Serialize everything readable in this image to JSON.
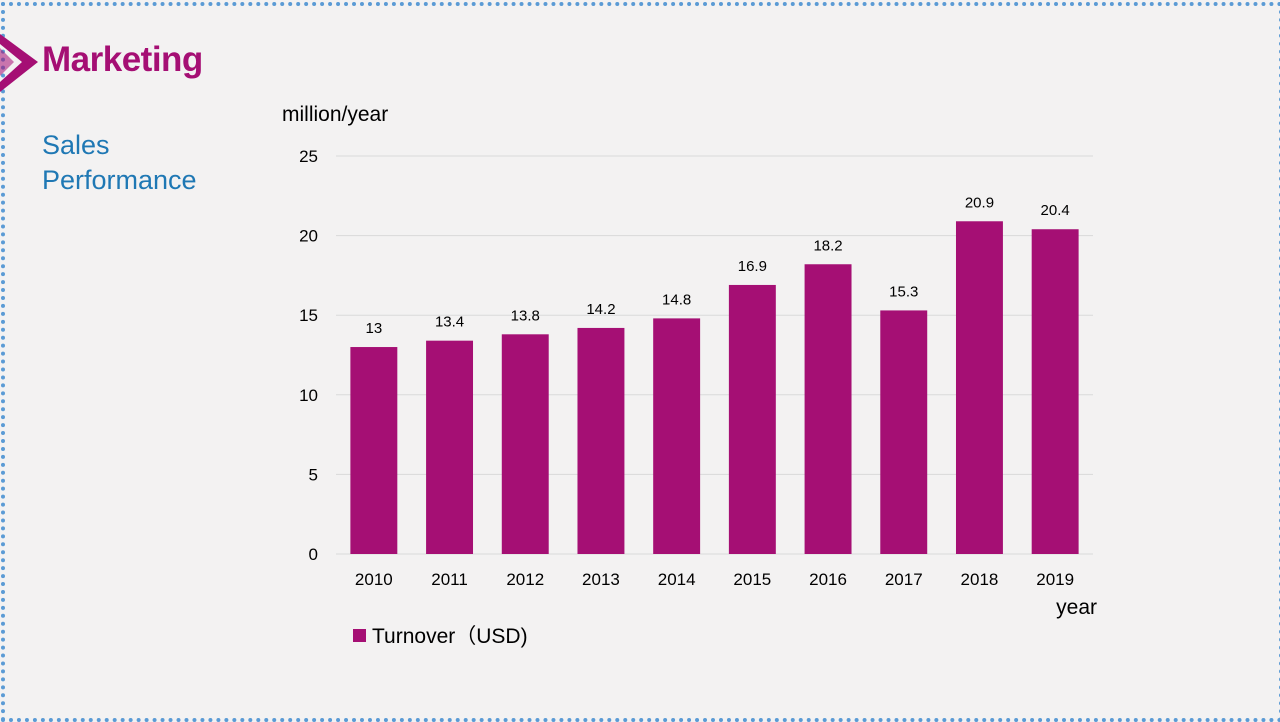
{
  "page": {
    "title": "Marketing",
    "subtitle": "Sales Performance"
  },
  "colors": {
    "accent": "#a50f74",
    "subtitle": "#1f78b4",
    "frame": "#5b9bd5",
    "background": "#f3f2f2",
    "grid": "#d9d9d9"
  },
  "icons": {
    "header": "chevron-right-icon"
  },
  "chart_data": {
    "type": "bar",
    "categories": [
      "2010",
      "2011",
      "2012",
      "2013",
      "2014",
      "2015",
      "2016",
      "2017",
      "2018",
      "2019"
    ],
    "series": [
      {
        "name": "Turnover（USD)",
        "values": [
          13,
          13.4,
          13.8,
          14.2,
          14.8,
          16.9,
          18.2,
          15.3,
          20.9,
          20.4
        ],
        "color": "#a50f74"
      }
    ],
    "data_labels": [
      "13",
      "13.4",
      "13.8",
      "14.2",
      "14.8",
      "16.9",
      "18.2",
      "15.3",
      "20.9",
      "20.4"
    ],
    "ylabel": "million/year",
    "xlabel": "year",
    "ylim": [
      0,
      25
    ],
    "yticks": [
      0,
      5,
      10,
      15,
      20,
      25
    ],
    "grid": true,
    "legend": "bottom-left"
  }
}
